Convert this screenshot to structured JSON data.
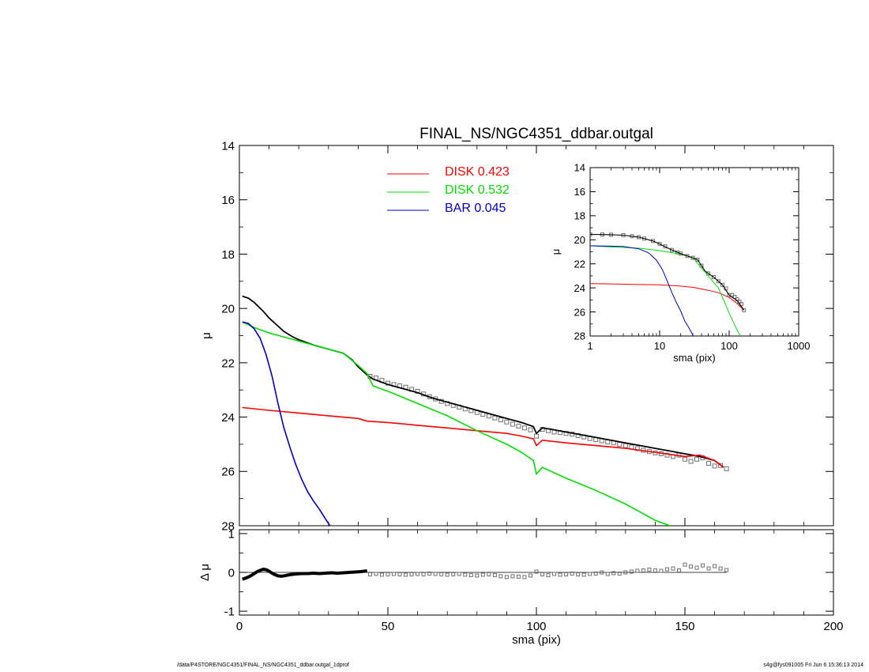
{
  "title": "FINAL_NS/NGC4351_ddbar.outgal",
  "footer": {
    "path": "/data/P4STORE/NGC4351/FINAL_NS/NGC4351_ddbar.outgal_1dprof",
    "stamp": "s4g@fys091005  Fri Jun  6 15:36:13 2014"
  },
  "colors": {
    "disk1": "#ff0000",
    "disk2": "#00e000",
    "bar": "#0000cc",
    "data": "#707070",
    "total": "#000000"
  },
  "chart_data": [
    {
      "id": "main",
      "type": "line",
      "title": "FINAL_NS/NGC4351_ddbar.outgal",
      "xlabel": "",
      "ylabel": "μ",
      "xlim": [
        0,
        200
      ],
      "ylim": [
        28,
        14
      ],
      "xticks": [
        0,
        50,
        100,
        150,
        200
      ],
      "yticks": [
        14,
        16,
        18,
        20,
        22,
        24,
        26,
        28
      ],
      "legend": {
        "placement": "top-center",
        "entries": [
          {
            "label": "DISK  0.423",
            "color_key": "disk1"
          },
          {
            "label": "DISK  0.532",
            "color_key": "disk2"
          },
          {
            "label": "BAR  0.045",
            "color_key": "bar"
          }
        ]
      },
      "series": [
        {
          "color_key": "total",
          "x": [
            1,
            3,
            5,
            8,
            10,
            12,
            15,
            18,
            20,
            25,
            30,
            35,
            38,
            40,
            43,
            45,
            50,
            55,
            60,
            65,
            70,
            75,
            80,
            85,
            90,
            95,
            99,
            100,
            102,
            105,
            110,
            115,
            120,
            125,
            130,
            135,
            140,
            145,
            150,
            155,
            160,
            163
          ],
          "y": [
            19.55,
            19.62,
            19.78,
            20.1,
            20.35,
            20.55,
            20.85,
            21.05,
            21.15,
            21.35,
            21.5,
            21.65,
            21.9,
            22.15,
            22.45,
            22.6,
            22.8,
            22.95,
            23.1,
            23.3,
            23.45,
            23.6,
            23.75,
            23.9,
            24.05,
            24.2,
            24.35,
            24.6,
            24.4,
            24.45,
            24.55,
            24.65,
            24.75,
            24.85,
            24.95,
            25.05,
            25.15,
            25.25,
            25.35,
            25.45,
            25.6,
            25.85
          ]
        },
        {
          "color_key": "disk1",
          "x": [
            1,
            10,
            20,
            30,
            40,
            43,
            50,
            60,
            70,
            80,
            90,
            95,
            99,
            100,
            102,
            110,
            120,
            130,
            140,
            150,
            155,
            160,
            163
          ],
          "y": [
            23.65,
            23.75,
            23.85,
            23.95,
            24.05,
            24.15,
            24.2,
            24.3,
            24.4,
            24.5,
            24.6,
            24.7,
            24.8,
            25.05,
            24.85,
            24.95,
            25.05,
            25.15,
            25.3,
            25.45,
            25.4,
            25.6,
            25.85
          ]
        },
        {
          "color_key": "disk2",
          "x": [
            1,
            5,
            10,
            20,
            30,
            35,
            40,
            43,
            45,
            50,
            60,
            70,
            80,
            90,
            95,
            99,
            100,
            102,
            110,
            120,
            130,
            135,
            140,
            145
          ],
          "y": [
            20.5,
            20.7,
            20.9,
            21.2,
            21.5,
            21.65,
            22.1,
            22.4,
            22.85,
            23.05,
            23.5,
            23.95,
            24.5,
            25.0,
            25.3,
            25.6,
            26.1,
            25.85,
            26.25,
            26.7,
            27.2,
            27.5,
            27.8,
            28.0
          ]
        },
        {
          "color_key": "bar",
          "x": [
            1,
            3,
            5,
            7,
            9,
            11,
            13,
            15,
            17,
            19,
            21,
            23,
            25,
            27,
            29,
            30.5
          ],
          "y": [
            20.5,
            20.55,
            20.75,
            21.1,
            21.7,
            22.5,
            23.5,
            24.4,
            25.1,
            25.75,
            26.3,
            26.75,
            27.1,
            27.4,
            27.75,
            28.0
          ]
        }
      ],
      "points": {
        "color_key": "data",
        "x": [
          44,
          46,
          48,
          50,
          52,
          54,
          56,
          58,
          60,
          62,
          64,
          66,
          68,
          70,
          72,
          74,
          76,
          78,
          80,
          82,
          84,
          86,
          88,
          90,
          92,
          94,
          96,
          98,
          100,
          102,
          104,
          106,
          108,
          110,
          112,
          114,
          116,
          118,
          120,
          122,
          124,
          126,
          128,
          130,
          132,
          134,
          136,
          138,
          140,
          142,
          144,
          146,
          148,
          150,
          152,
          154,
          156,
          158,
          160,
          162,
          164
        ],
        "y": [
          22.5,
          22.56,
          22.65,
          22.75,
          22.8,
          22.85,
          22.9,
          22.98,
          23.05,
          23.15,
          23.25,
          23.33,
          23.42,
          23.5,
          23.57,
          23.63,
          23.7,
          23.76,
          23.83,
          23.9,
          23.96,
          24.03,
          24.1,
          24.18,
          24.26,
          24.33,
          24.4,
          24.47,
          24.7,
          24.45,
          24.5,
          24.55,
          24.57,
          24.6,
          24.63,
          24.68,
          24.73,
          24.79,
          24.83,
          24.87,
          24.91,
          24.95,
          25.0,
          25.05,
          25.1,
          25.16,
          25.22,
          25.27,
          25.32,
          25.35,
          25.4,
          25.45,
          25.4,
          25.55,
          25.63,
          25.55,
          25.5,
          25.7,
          25.8,
          25.78,
          25.9
        ]
      }
    },
    {
      "id": "inset",
      "type": "line",
      "xlabel": "sma (pix)",
      "ylabel": "μ",
      "xscale": "log",
      "xlim": [
        1,
        1000
      ],
      "ylim": [
        28,
        14
      ],
      "xticks": [
        1,
        10,
        100,
        1000
      ],
      "yticks": [
        14,
        16,
        18,
        20,
        22,
        24,
        26,
        28
      ],
      "series": [
        {
          "color_key": "disk1",
          "x": [
            1,
            2,
            5,
            10,
            20,
            30,
            50,
            70,
            100,
            130,
            163
          ],
          "y": [
            23.65,
            23.67,
            23.72,
            23.75,
            23.85,
            23.95,
            24.2,
            24.4,
            24.8,
            25.3,
            25.85
          ]
        },
        {
          "color_key": "disk2",
          "x": [
            1,
            2,
            5,
            10,
            20,
            30,
            50,
            70,
            100,
            130,
            145
          ],
          "y": [
            20.5,
            20.6,
            20.7,
            20.9,
            21.2,
            21.5,
            23.0,
            24.0,
            26.1,
            27.5,
            28.0
          ]
        },
        {
          "color_key": "bar",
          "x": [
            1,
            3,
            5,
            7,
            9,
            11,
            13,
            15,
            17,
            20,
            23,
            26,
            29,
            30.5
          ],
          "y": [
            20.5,
            20.55,
            20.75,
            21.1,
            21.7,
            22.5,
            23.5,
            24.4,
            25.1,
            25.9,
            26.75,
            27.25,
            27.75,
            28.0
          ]
        },
        {
          "color_key": "total",
          "x": [
            1,
            2,
            3,
            5,
            8,
            10,
            15,
            20,
            30,
            35,
            40,
            45,
            50,
            60,
            80,
            100,
            130,
            163
          ],
          "y": [
            19.55,
            19.58,
            19.62,
            19.78,
            20.1,
            20.35,
            20.85,
            21.15,
            21.5,
            21.65,
            22.15,
            22.6,
            22.8,
            23.1,
            23.75,
            24.6,
            25.05,
            25.85
          ]
        }
      ],
      "points": {
        "color_key": "data",
        "x": [
          1,
          1.5,
          2,
          3,
          4,
          5,
          6,
          8,
          10,
          12,
          15,
          18,
          20,
          25,
          30,
          35,
          40,
          50,
          60,
          70,
          80,
          90,
          100,
          110,
          120,
          130,
          140,
          150,
          163
        ],
        "y": [
          19.55,
          19.56,
          19.58,
          19.62,
          19.7,
          19.78,
          19.9,
          20.1,
          20.35,
          20.55,
          20.85,
          21.05,
          21.15,
          21.35,
          21.5,
          21.65,
          22.15,
          22.8,
          23.1,
          23.45,
          23.75,
          24.05,
          24.6,
          24.6,
          24.75,
          24.95,
          25.15,
          25.35,
          25.85
        ]
      }
    },
    {
      "id": "residual",
      "type": "scatter",
      "xlabel": "sma (pix)",
      "ylabel": "Δ μ",
      "xlim": [
        0,
        200
      ],
      "ylim": [
        -1.1,
        1.1
      ],
      "xticks": [
        0,
        50,
        100,
        150,
        200
      ],
      "yticks": [
        -1,
        0,
        1
      ],
      "zero_line": 0,
      "curve": {
        "color_key": "total",
        "x": [
          1,
          2,
          3,
          4,
          5,
          6,
          7,
          8,
          9,
          10,
          11,
          12,
          13,
          14,
          15,
          17,
          19,
          21,
          23,
          25,
          27,
          29,
          31,
          33,
          35,
          37,
          39,
          41,
          43
        ],
        "y": [
          -0.18,
          -0.15,
          -0.12,
          -0.08,
          -0.03,
          0.02,
          0.05,
          0.08,
          0.07,
          0.03,
          -0.02,
          -0.06,
          -0.09,
          -0.1,
          -0.09,
          -0.06,
          -0.04,
          -0.03,
          -0.03,
          -0.02,
          -0.03,
          -0.02,
          -0.01,
          -0.02,
          -0.01,
          0.0,
          0.01,
          0.02,
          0.04
        ]
      },
      "points": {
        "color_key": "data",
        "x": [
          44,
          46,
          48,
          50,
          52,
          54,
          56,
          58,
          60,
          62,
          64,
          66,
          68,
          70,
          72,
          74,
          76,
          78,
          80,
          82,
          84,
          86,
          88,
          90,
          92,
          94,
          96,
          98,
          100,
          102,
          104,
          106,
          108,
          110,
          112,
          114,
          116,
          118,
          120,
          122,
          124,
          126,
          128,
          130,
          132,
          134,
          136,
          138,
          140,
          142,
          144,
          146,
          148,
          150,
          152,
          154,
          156,
          158,
          160,
          162,
          164
        ],
        "y": [
          -0.05,
          -0.04,
          -0.06,
          -0.05,
          -0.04,
          -0.05,
          -0.06,
          -0.05,
          -0.04,
          -0.05,
          -0.03,
          -0.04,
          -0.05,
          -0.06,
          -0.05,
          -0.04,
          -0.06,
          -0.07,
          -0.08,
          -0.06,
          -0.05,
          -0.07,
          -0.1,
          -0.12,
          -0.1,
          -0.11,
          -0.12,
          -0.08,
          0.02,
          -0.05,
          -0.07,
          -0.04,
          -0.06,
          -0.05,
          -0.03,
          -0.05,
          -0.06,
          -0.04,
          -0.03,
          0.0,
          -0.04,
          -0.02,
          -0.03,
          0.0,
          0.02,
          0.04,
          0.05,
          0.07,
          0.05,
          0.04,
          0.08,
          0.1,
          0.05,
          0.2,
          0.15,
          0.12,
          0.18,
          0.1,
          0.16,
          0.1,
          0.06
        ]
      }
    }
  ]
}
